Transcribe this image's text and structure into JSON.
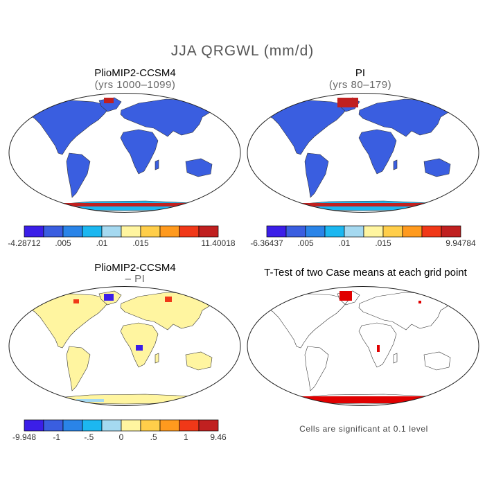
{
  "title": "JJA QRGWL (mm/d)",
  "footnote": "Cells are significant at 0.1 level",
  "colors": {
    "land_neg": "#3a5ee0",
    "land_pos_pale": "#fff5a0",
    "sig": "#e00000"
  },
  "chart_data": [
    {
      "type": "heatmap",
      "title": "PlioMIP2-CCSM4",
      "subtitle": "(yrs 1000–1099)",
      "map": "global-robinson",
      "colorbar": {
        "colors": [
          "#3b1ee8",
          "#3a5ee0",
          "#2a84e8",
          "#1cb7f0",
          "#a5d9f0",
          "#fff5a0",
          "#ffce4a",
          "#ff9a1e",
          "#f03818",
          "#c02020"
        ],
        "labels": [
          "-4.28712",
          ".005",
          ".01",
          ".015",
          "11.40018"
        ]
      }
    },
    {
      "type": "heatmap",
      "title": "PI",
      "subtitle": "(yrs 80–179)",
      "map": "global-robinson",
      "colorbar": {
        "colors": [
          "#3b1ee8",
          "#3a5ee0",
          "#2a84e8",
          "#1cb7f0",
          "#a5d9f0",
          "#fff5a0",
          "#ffce4a",
          "#ff9a1e",
          "#f03818",
          "#c02020"
        ],
        "labels": [
          "-6.36437",
          ".005",
          ".01",
          ".015",
          "9.94784"
        ]
      }
    },
    {
      "type": "heatmap",
      "title": "PlioMIP2-CCSM4",
      "subtitle": "– PI",
      "map": "global-robinson",
      "colorbar": {
        "colors": [
          "#3b1ee8",
          "#3a5ee0",
          "#2a84e8",
          "#1cb7f0",
          "#a5d9f0",
          "#fff5a0",
          "#ffce4a",
          "#ff9a1e",
          "#f03818",
          "#c02020"
        ],
        "labels": [
          "-9.948",
          "-1",
          "-.5",
          "0",
          ".5",
          "1",
          "9.46"
        ]
      }
    },
    {
      "type": "heatmap",
      "title": "T-Test of two Case means at each grid point",
      "map": "global-robinson"
    }
  ]
}
